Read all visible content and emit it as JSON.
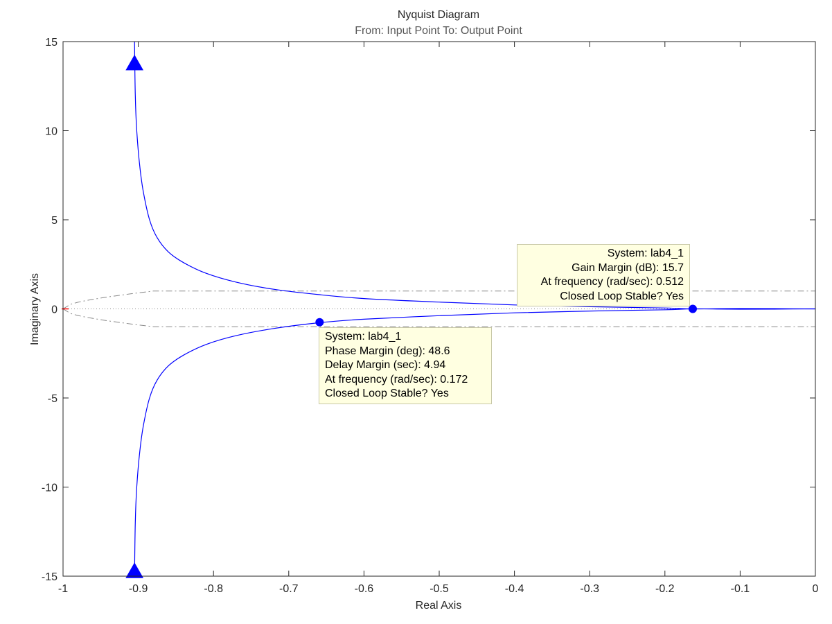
{
  "chart_data": {
    "type": "line",
    "title": "Nyquist Diagram",
    "subtitle": "From: Input Point  To: Output Point",
    "xlabel": "Real Axis",
    "ylabel": "Imaginary Axis",
    "xlim": [
      -1,
      0
    ],
    "ylim": [
      -15,
      15
    ],
    "xticks": [
      -1,
      -0.9,
      -0.8,
      -0.7,
      -0.6,
      -0.5,
      -0.4,
      -0.3,
      -0.2,
      -0.1,
      0
    ],
    "xtick_labels": [
      "-1",
      "-0.9",
      "-0.8",
      "-0.7",
      "-0.6",
      "-0.5",
      "-0.4",
      "-0.3",
      "-0.2",
      "-0.1",
      "0"
    ],
    "yticks": [
      -15,
      -10,
      -5,
      0,
      5,
      10,
      15
    ],
    "ytick_labels": [
      "-15",
      "-10",
      "-5",
      "0",
      "5",
      "10",
      "15"
    ],
    "grid": false,
    "critical_point": [
      -1,
      0
    ],
    "series": [
      {
        "color": "#0000ff",
        "points": [
          [
            -0.905,
            15
          ],
          [
            -0.904,
            12
          ],
          [
            -0.902,
            10
          ],
          [
            -0.898,
            8
          ],
          [
            -0.893,
            6.5
          ],
          [
            -0.885,
            5
          ],
          [
            -0.875,
            4
          ],
          [
            -0.86,
            3.2
          ],
          [
            -0.84,
            2.6
          ],
          [
            -0.81,
            2.0
          ],
          [
            -0.77,
            1.5
          ],
          [
            -0.72,
            1.1
          ],
          [
            -0.66,
            0.8
          ],
          [
            -0.6,
            0.58
          ],
          [
            -0.5,
            0.38
          ],
          [
            -0.4,
            0.22
          ],
          [
            -0.3,
            0.12
          ],
          [
            -0.2,
            0.05
          ],
          [
            -0.163,
            0.0
          ],
          [
            -0.1,
            0.02
          ],
          [
            0,
            0
          ]
        ]
      },
      {
        "color": "#0000ff",
        "points": [
          [
            -0.905,
            -15
          ],
          [
            -0.904,
            -12
          ],
          [
            -0.902,
            -10
          ],
          [
            -0.898,
            -8
          ],
          [
            -0.893,
            -6.5
          ],
          [
            -0.885,
            -5
          ],
          [
            -0.875,
            -4
          ],
          [
            -0.86,
            -3.2
          ],
          [
            -0.84,
            -2.6
          ],
          [
            -0.81,
            -2.0
          ],
          [
            -0.77,
            -1.5
          ],
          [
            -0.72,
            -1.1
          ],
          [
            -0.66,
            -0.78
          ],
          [
            -0.6,
            -0.58
          ],
          [
            -0.5,
            -0.38
          ],
          [
            -0.4,
            -0.22
          ],
          [
            -0.3,
            -0.12
          ],
          [
            -0.2,
            -0.05
          ],
          [
            -0.163,
            0.0
          ],
          [
            -0.1,
            -0.02
          ],
          [
            0,
            0
          ]
        ]
      }
    ],
    "arrows": [
      {
        "x": -0.905,
        "y": 13.8,
        "direction": "up"
      },
      {
        "x": -0.905,
        "y": -14.7,
        "direction": "up"
      }
    ],
    "margin_markers": [
      {
        "label": "gain-margin",
        "x": -0.163,
        "y": 0
      },
      {
        "label": "phase-margin",
        "x": -0.659,
        "y": -0.75
      }
    ],
    "m_circle_band": {
      "color": "#888888",
      "half_width": 1.0,
      "x_start": -1
    }
  },
  "tooltips": {
    "gain_margin": {
      "system": "System: lab4_1",
      "gain_margin": "Gain Margin (dB): 15.7",
      "frequency": "At frequency (rad/sec): 0.512",
      "stable": "Closed Loop Stable? Yes"
    },
    "phase_margin": {
      "system": "System: lab4_1",
      "phase_margin": "Phase Margin (deg): 48.6",
      "delay_margin": "Delay Margin (sec): 4.94",
      "frequency": "At frequency (rad/sec): 0.172",
      "stable": "Closed Loop Stable? Yes"
    }
  }
}
